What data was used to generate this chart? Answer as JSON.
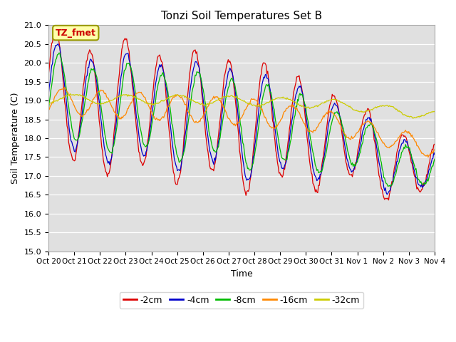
{
  "title": "Tonzi Soil Temperatures Set B",
  "xlabel": "Time",
  "ylabel": "Soil Temperature (C)",
  "ylim": [
    15.0,
    21.0
  ],
  "yticks": [
    15.0,
    15.5,
    16.0,
    16.5,
    17.0,
    17.5,
    18.0,
    18.5,
    19.0,
    19.5,
    20.0,
    20.5,
    21.0
  ],
  "xtick_labels": [
    "Oct 20",
    "Oct 21",
    "Oct 22",
    "Oct 23",
    "Oct 24",
    "Oct 25",
    "Oct 26",
    "Oct 27",
    "Oct 28",
    "Oct 29",
    "Oct 30",
    "Oct 31",
    "Nov 1",
    "Nov 2",
    "Nov 3",
    "Nov 4"
  ],
  "series_colors": [
    "#dd0000",
    "#0000cc",
    "#00bb00",
    "#ff8800",
    "#cccc00"
  ],
  "series_labels": [
    "-2cm",
    "-4cm",
    "-8cm",
    "-16cm",
    "-32cm"
  ],
  "bg_color": "#e0e0e0",
  "annotation_text": "TZ_fmet",
  "annotation_color": "#cc0000",
  "annotation_bg": "#ffffaa",
  "annotation_edge": "#999900"
}
